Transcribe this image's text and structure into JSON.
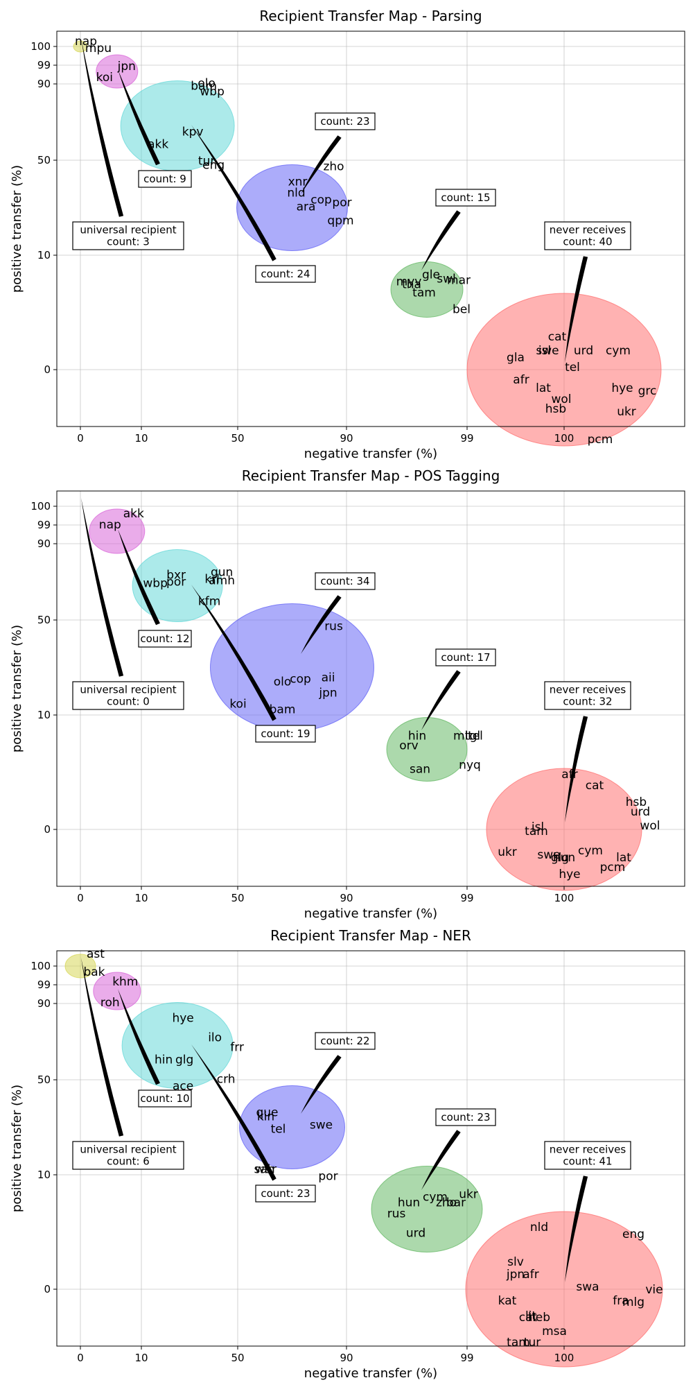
{
  "chart_data": [
    {
      "type": "scatter",
      "title": "Recipient Transfer Map - Parsing",
      "xlabel": "negative transfer (%)",
      "ylabel": "positive transfer (%)",
      "x_ticks": [
        "0",
        "10",
        "50",
        "90",
        "99",
        "100"
      ],
      "y_ticks": [
        "100",
        "99",
        "90",
        "50",
        "10",
        "0"
      ],
      "grid": true,
      "clusters": [
        {
          "color": "#d4d44a",
          "center": [
            0,
            100
          ],
          "labels": [
            "nap",
            "mpu"
          ]
        },
        {
          "color": "#d65ad6",
          "center": [
            6,
            96
          ],
          "labels": [
            "koi",
            "jpn"
          ]
        },
        {
          "color": "#5ad6d6",
          "center": [
            25,
            68
          ],
          "labels": [
            "akk",
            "kpv",
            "tur",
            "eng",
            "olo",
            "bam",
            "wbp"
          ]
        },
        {
          "color": "#5a5af5",
          "center": [
            70,
            30
          ],
          "labels": [
            "xnr",
            "nld",
            "ara",
            "cop",
            "zho",
            "por",
            "qpm"
          ]
        },
        {
          "color": "#5ab45a",
          "center": [
            96,
            7
          ],
          "labels": [
            "gle",
            "swl",
            "mar",
            "myv",
            "tha",
            "tam",
            "bel"
          ]
        },
        {
          "color": "#ff6666",
          "center": [
            100,
            0
          ],
          "labels": [
            "cat",
            "swe",
            "isl",
            "urd",
            "cym",
            "gla",
            "tel",
            "afr",
            "lat",
            "wol",
            "hsb",
            "hye",
            "grc",
            "ukr",
            "pcm"
          ]
        }
      ],
      "annotations": [
        {
          "lines": [
            "universal recipient",
            "count: 3"
          ]
        },
        {
          "lines": [
            "count: 9"
          ]
        },
        {
          "lines": [
            "count: 24"
          ]
        },
        {
          "lines": [
            "count: 23"
          ]
        },
        {
          "lines": [
            "count: 15"
          ]
        },
        {
          "lines": [
            "never receives",
            "count: 40"
          ]
        }
      ]
    },
    {
      "type": "scatter",
      "title": "Recipient Transfer Map - POS Tagging",
      "xlabel": "negative transfer (%)",
      "ylabel": "positive transfer (%)",
      "x_ticks": [
        "0",
        "10",
        "50",
        "90",
        "99",
        "100"
      ],
      "y_ticks": [
        "100",
        "99",
        "90",
        "50",
        "10",
        "0"
      ],
      "grid": true,
      "clusters": [
        {
          "color": "#d65ad6",
          "center": [
            6,
            96
          ],
          "labels": [
            "akk",
            "nap"
          ]
        },
        {
          "color": "#5ad6d6",
          "center": [
            25,
            68
          ],
          "labels": [
            "bxr",
            "gun",
            "wbp",
            "por",
            "krl",
            "amh",
            "kfm"
          ]
        },
        {
          "color": "#5a5af5",
          "center": [
            70,
            30
          ],
          "labels": [
            "rus",
            "olo",
            "cop",
            "aii",
            "jpn",
            "koi",
            "bam"
          ]
        },
        {
          "color": "#5ab45a",
          "center": [
            96,
            7
          ],
          "labels": [
            "hin",
            "mlt",
            "tgl",
            "tel",
            "orv",
            "san",
            "nyq"
          ]
        },
        {
          "color": "#ff6666",
          "center": [
            100,
            0
          ],
          "labels": [
            "afr",
            "cat",
            "hsb",
            "urd",
            "wol",
            "isl",
            "tam",
            "ukr",
            "swe",
            "glg",
            "hun",
            "cym",
            "lat",
            "pcm",
            "hye"
          ]
        }
      ],
      "annotations": [
        {
          "lines": [
            "universal recipient",
            "count: 0"
          ]
        },
        {
          "lines": [
            "count: 12"
          ]
        },
        {
          "lines": [
            "count: 19"
          ]
        },
        {
          "lines": [
            "count: 34"
          ]
        },
        {
          "lines": [
            "count: 17"
          ]
        },
        {
          "lines": [
            "never receives",
            "count: 32"
          ]
        }
      ]
    },
    {
      "type": "scatter",
      "title": "Recipient Transfer Map - NER",
      "xlabel": "negative transfer (%)",
      "ylabel": "positive transfer (%)",
      "x_ticks": [
        "0",
        "10",
        "50",
        "90",
        "99",
        "100"
      ],
      "y_ticks": [
        "100",
        "99",
        "90",
        "50",
        "10",
        "0"
      ],
      "grid": true,
      "clusters": [
        {
          "color": "#d4d44a",
          "center": [
            0,
            100
          ],
          "labels": [
            "ast",
            "bak"
          ]
        },
        {
          "color": "#d65ad6",
          "center": [
            6,
            96
          ],
          "labels": [
            "khm",
            "roh"
          ]
        },
        {
          "color": "#5ad6d6",
          "center": [
            25,
            68
          ],
          "labels": [
            "hye",
            "ilo",
            "frr",
            "hin",
            "glg",
            "ace",
            "crh"
          ]
        },
        {
          "color": "#5a5af5",
          "center": [
            70,
            30
          ],
          "labels": [
            "que",
            "kin",
            "tel",
            "swe",
            "war",
            "sah",
            "por"
          ]
        },
        {
          "color": "#5ab45a",
          "center": [
            96,
            7
          ],
          "labels": [
            "cym",
            "ukr",
            "hun",
            "zho",
            "bar",
            "rus",
            "urd"
          ]
        },
        {
          "color": "#ff6666",
          "center": [
            100,
            0
          ],
          "labels": [
            "nld",
            "eng",
            "slv",
            "jpn",
            "afr",
            "swa",
            "vie",
            "fra",
            "mlg",
            "kat",
            "lit",
            "heb",
            "cat",
            "msa",
            "tam",
            "tur"
          ]
        }
      ],
      "annotations": [
        {
          "lines": [
            "universal recipient",
            "count: 6"
          ]
        },
        {
          "lines": [
            "count: 10"
          ]
        },
        {
          "lines": [
            "count: 23"
          ]
        },
        {
          "lines": [
            "count: 22"
          ]
        },
        {
          "lines": [
            "count: 23"
          ]
        },
        {
          "lines": [
            "never receives",
            "count: 41"
          ]
        }
      ]
    }
  ]
}
